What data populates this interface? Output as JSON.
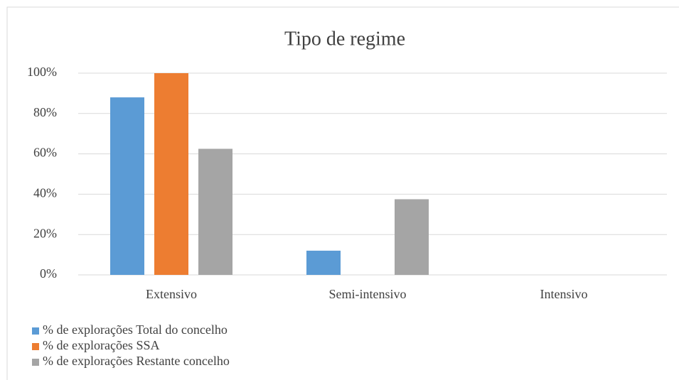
{
  "chart_data": {
    "type": "bar",
    "title": "Tipo de regime",
    "categories": [
      "Extensivo",
      "Semi-intensivo",
      "Intensivo"
    ],
    "series": [
      {
        "name": "% de explorações Total do concelho",
        "color": "#5b9bd5",
        "values": [
          88,
          12,
          0
        ]
      },
      {
        "name": "% de explorações SSA",
        "color": "#ed7d31",
        "values": [
          100,
          0,
          0
        ]
      },
      {
        "name": "% de explorações Restante concelho",
        "color": "#a5a5a5",
        "values": [
          62.5,
          37.5,
          0
        ]
      }
    ],
    "ylim": [
      0,
      100
    ],
    "yticks": [
      {
        "value": 0,
        "label": "0%"
      },
      {
        "value": 20,
        "label": "20%"
      },
      {
        "value": 40,
        "label": "40%"
      },
      {
        "value": 60,
        "label": "60%"
      },
      {
        "value": 80,
        "label": "80%"
      },
      {
        "value": 100,
        "label": "100%"
      }
    ],
    "grid": true,
    "legend": "bottom-left"
  }
}
